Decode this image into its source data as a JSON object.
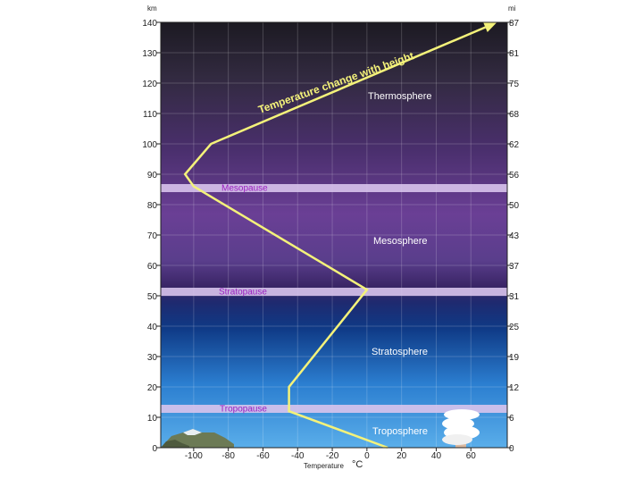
{
  "axes": {
    "left_unit": "km",
    "right_unit": "mi",
    "x_title": "Temperature",
    "x_unit": "°C",
    "km_ticks": [
      "0",
      "10",
      "20",
      "30",
      "40",
      "50",
      "60",
      "70",
      "80",
      "90",
      "100",
      "110",
      "120",
      "130",
      "140"
    ],
    "mi_ticks": [
      "0",
      "6",
      "12",
      "19",
      "25",
      "31",
      "37",
      "43",
      "50",
      "56",
      "62",
      "68",
      "75",
      "81",
      "87"
    ],
    "temp_ticks": [
      "-100",
      "-80",
      "-60",
      "-40",
      "-20",
      "0",
      "20",
      "40",
      "60"
    ]
  },
  "layers": {
    "thermosphere": "Thermosphere",
    "mesosphere": "Mesosphere",
    "stratosphere": "Stratosphere",
    "troposphere": "Troposphere",
    "mesopause": "Mesopause",
    "stratopause": "Stratopause",
    "tropopause": "Tropopause"
  },
  "curve_label": "Temperature change with height",
  "colors": {
    "curve": "#f4f27a",
    "pause_band": "#d8c4ec",
    "pause_text": "#9b1fc0",
    "layer_text": "#ffffff"
  },
  "chart_data": {
    "type": "line",
    "x": [
      12,
      -45,
      -45,
      0,
      -100,
      -105,
      -90,
      75
    ],
    "y": [
      0,
      12,
      20,
      52,
      86,
      90,
      100,
      140
    ],
    "xlabel": "Temperature °C",
    "ylabel": "km",
    "y2label": "mi",
    "xlim": [
      -119,
      81
    ],
    "ylim": [
      0,
      140
    ]
  }
}
